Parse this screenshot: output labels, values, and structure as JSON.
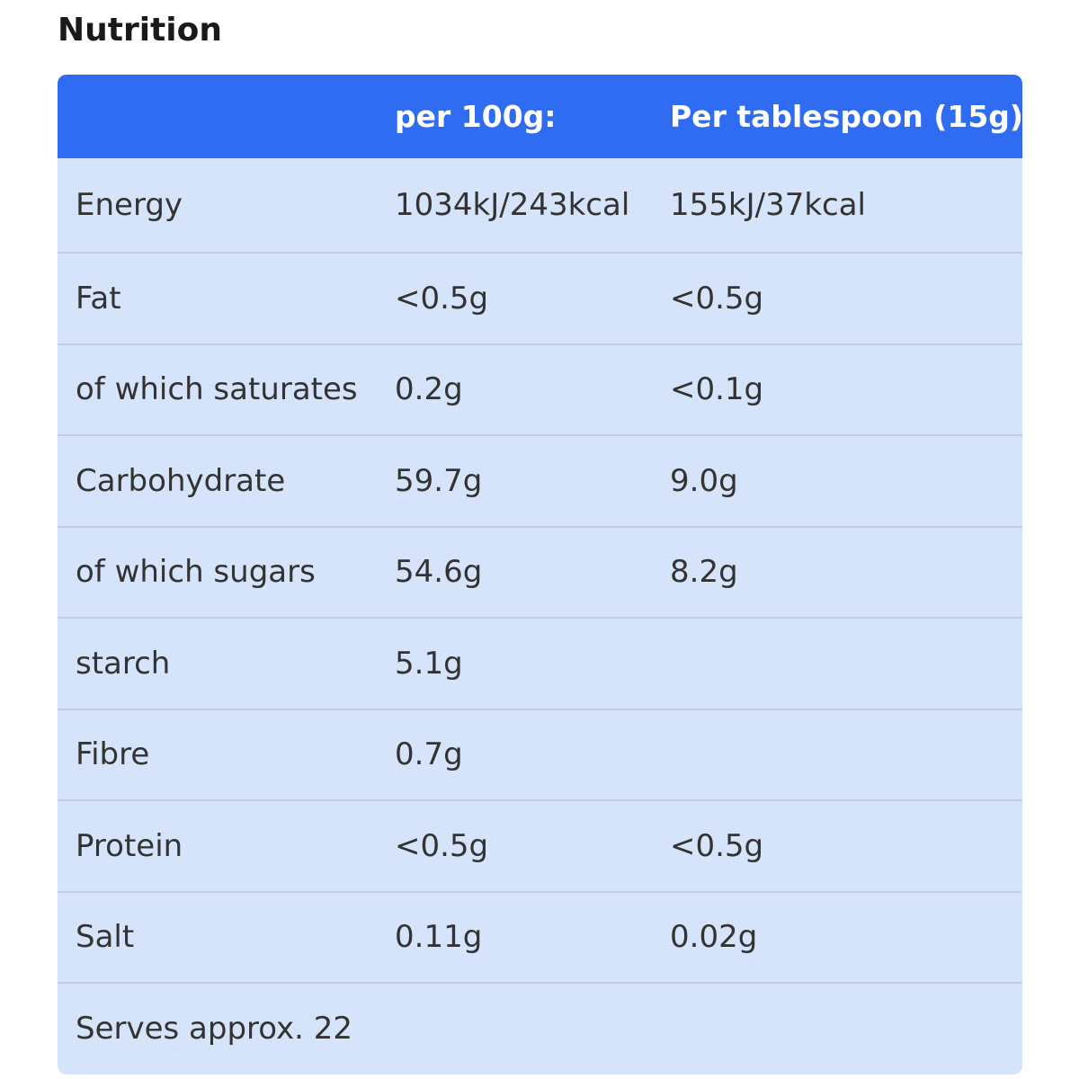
{
  "title": "Nutrition",
  "table": {
    "headers": [
      "",
      "per 100g:",
      "Per tablespoon (15g)"
    ],
    "rows": [
      [
        "Energy",
        "1034kJ/243kcal",
        "155kJ/37kcal"
      ],
      [
        "Fat",
        "<0.5g",
        "<0.5g"
      ],
      [
        "of which saturates",
        "0.2g",
        "<0.1g"
      ],
      [
        "Carbohydrate",
        "59.7g",
        "9.0g"
      ],
      [
        "of which sugars",
        "54.6g",
        "8.2g"
      ],
      [
        "starch",
        "5.1g",
        ""
      ],
      [
        "Fibre",
        "0.7g",
        ""
      ],
      [
        "Protein",
        "<0.5g",
        "<0.5g"
      ],
      [
        "Salt",
        "0.11g",
        "0.02g"
      ],
      [
        "Serves approx. 22",
        "",
        ""
      ]
    ]
  },
  "colors": {
    "header_bg": "#2f6cf2",
    "row_bg": "#d6e4fb",
    "row_divider": "#c3cedf"
  }
}
